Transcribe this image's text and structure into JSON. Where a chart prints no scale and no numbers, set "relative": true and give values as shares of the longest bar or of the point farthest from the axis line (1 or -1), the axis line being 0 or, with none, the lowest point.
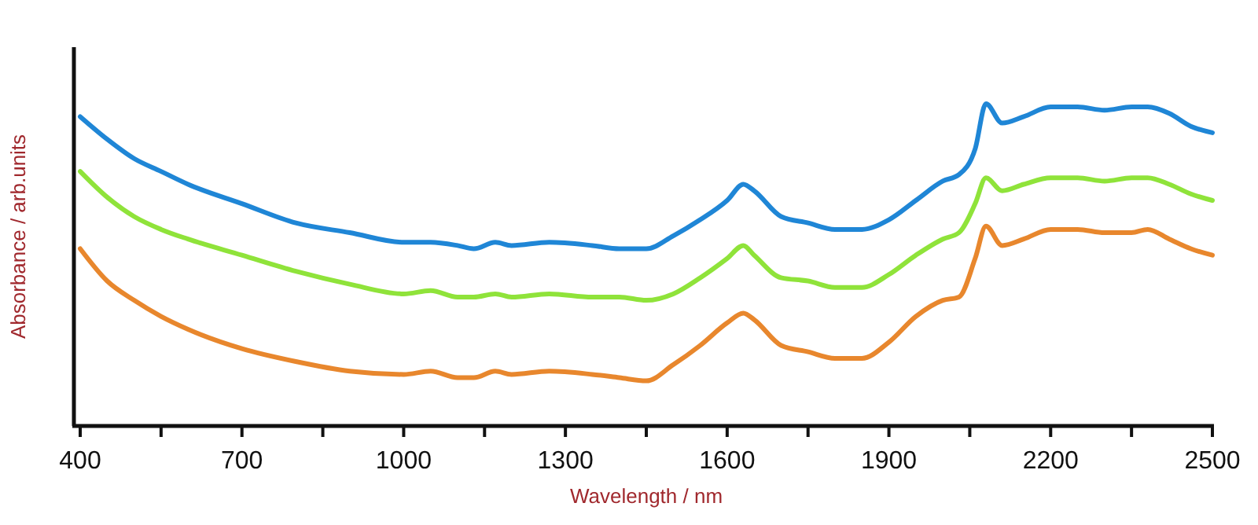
{
  "chart_data": {
    "type": "line",
    "relative": true,
    "xlabel": "Wavelength / nm",
    "ylabel": "Absorbance / arb.units",
    "tick_labels": "x",
    "grid": false,
    "marker": "none",
    "line_style": "solid",
    "x": [
      400,
      450,
      500,
      550,
      600,
      700,
      800,
      900,
      1000,
      1050,
      1100,
      1130,
      1170,
      1200,
      1270,
      1350,
      1400,
      1450,
      1500,
      1550,
      1600,
      1630,
      1650,
      1700,
      1750,
      1800,
      1850,
      1900,
      1950,
      2000,
      2030,
      2060,
      2080,
      2110,
      2150,
      2200,
      2250,
      2300,
      2350,
      2380,
      2420,
      2460,
      2500
    ],
    "xlim": [
      400,
      2500
    ],
    "xticks": [
      400,
      {
        "value": 550,
        "label": null
      },
      700,
      {
        "value": 850,
        "label": null
      },
      1000,
      {
        "value": 1150,
        "label": null
      },
      1300,
      {
        "value": 1450,
        "label": null
      },
      1600,
      {
        "value": 1750,
        "label": null
      },
      1900,
      {
        "value": 2050,
        "label": null
      },
      2200,
      {
        "value": 2350,
        "label": null
      },
      2500
    ],
    "series": [
      {
        "color": "#1f86d6",
        "values": [
          0.96,
          0.89,
          0.83,
          0.79,
          0.75,
          0.69,
          0.63,
          0.6,
          0.57,
          0.57,
          0.56,
          0.55,
          0.57,
          0.56,
          0.57,
          0.56,
          0.55,
          0.55,
          0.59,
          0.64,
          0.7,
          0.75,
          0.73,
          0.65,
          0.63,
          0.61,
          0.61,
          0.64,
          0.7,
          0.76,
          0.78,
          0.86,
          1.0,
          0.94,
          0.96,
          0.99,
          0.99,
          0.98,
          0.99,
          0.99,
          0.97,
          0.93,
          0.91
        ]
      },
      {
        "color": "#8fe33a",
        "values": [
          0.79,
          0.71,
          0.65,
          0.61,
          0.58,
          0.53,
          0.48,
          0.44,
          0.41,
          0.42,
          0.4,
          0.4,
          0.41,
          0.4,
          0.41,
          0.4,
          0.4,
          0.39,
          0.41,
          0.46,
          0.52,
          0.56,
          0.53,
          0.46,
          0.45,
          0.43,
          0.43,
          0.47,
          0.53,
          0.58,
          0.6,
          0.69,
          0.77,
          0.73,
          0.75,
          0.77,
          0.77,
          0.76,
          0.77,
          0.77,
          0.75,
          0.72,
          0.7
        ]
      },
      {
        "color": "#e8872d",
        "values": [
          0.55,
          0.45,
          0.39,
          0.34,
          0.3,
          0.24,
          0.2,
          0.17,
          0.16,
          0.17,
          0.15,
          0.15,
          0.17,
          0.16,
          0.17,
          0.16,
          0.15,
          0.14,
          0.19,
          0.25,
          0.32,
          0.35,
          0.33,
          0.25,
          0.23,
          0.21,
          0.21,
          0.26,
          0.34,
          0.39,
          0.4,
          0.52,
          0.62,
          0.56,
          0.58,
          0.61,
          0.61,
          0.6,
          0.6,
          0.61,
          0.58,
          0.55,
          0.53
        ]
      }
    ]
  }
}
